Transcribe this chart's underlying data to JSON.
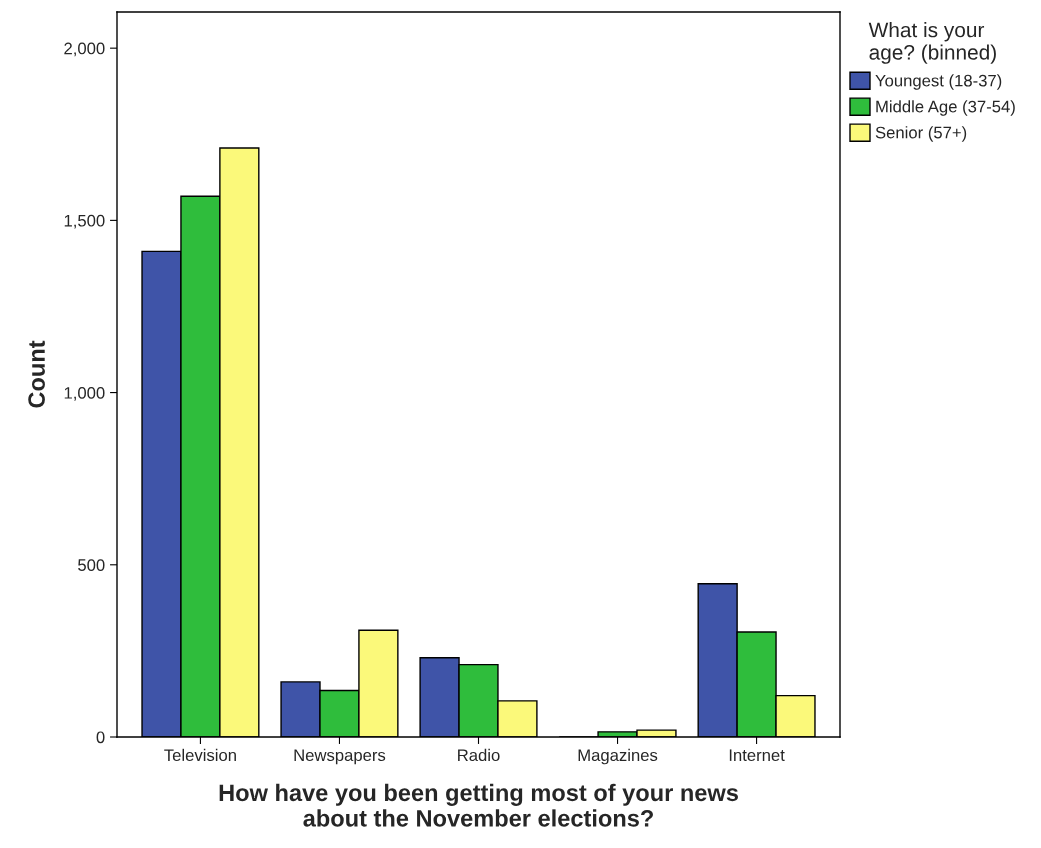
{
  "chart_data": {
    "type": "bar",
    "xlabel": "How have you been getting most of your news\nabout the November elections?",
    "ylabel": "Count",
    "legend_title": "What is your\nage? (binned)",
    "categories": [
      "Television",
      "Newspapers",
      "Radio",
      "Magazines",
      "Internet"
    ],
    "series": [
      {
        "name": "Youngest (18-37)",
        "color": "#3f54a8",
        "values": [
          1410,
          160,
          230,
          0,
          445
        ]
      },
      {
        "name": "Middle Age (37-54)",
        "color": "#2fbd3c",
        "values": [
          1570,
          135,
          210,
          15,
          305
        ]
      },
      {
        "name": "Senior (57+)",
        "color": "#fbf97a",
        "values": [
          1710,
          310,
          105,
          20,
          120
        ]
      }
    ],
    "ylim": [
      0,
      2105
    ],
    "yticks": [
      0,
      {
        "value": 500,
        "label": "500"
      },
      {
        "value": 1000,
        "label": "1,000"
      },
      {
        "value": 1500,
        "label": "1,500"
      },
      {
        "value": 2000,
        "label": "2,000"
      }
    ],
    "grid": false,
    "legend": "top right"
  }
}
